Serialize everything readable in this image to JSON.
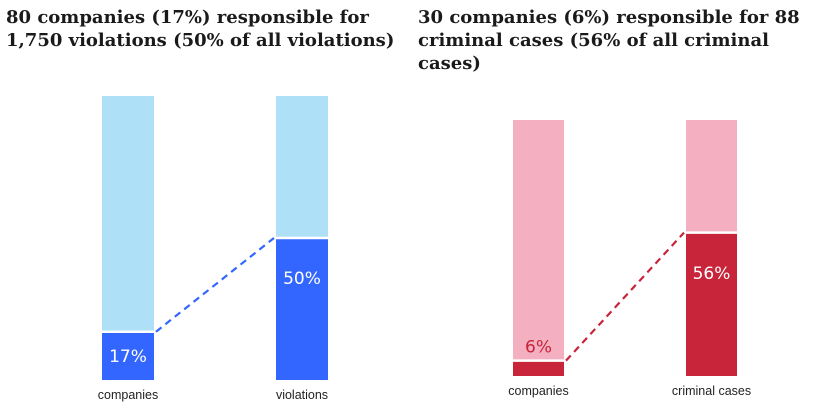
{
  "chart_data": [
    {
      "type": "bar",
      "title": "80 companies (17%) responsible for 1,750 violations (50% of all violations)",
      "categories": [
        "companies",
        "violations"
      ],
      "values": [
        17,
        50
      ],
      "value_labels": [
        "17%",
        "50%"
      ],
      "ylim": [
        0,
        100
      ],
      "stacked_to_100": true,
      "colors": {
        "highlight": "#3366ff",
        "remainder": "#aee0f7",
        "connector": "#3366ff",
        "label_inside": "#ffffff"
      }
    },
    {
      "type": "bar",
      "title": "30 companies (6%) responsible for 88 criminal cases (56% of all criminal cases)",
      "categories": [
        "companies",
        "criminal cases"
      ],
      "values": [
        6,
        56
      ],
      "value_labels": [
        "6%",
        "56%"
      ],
      "ylim": [
        0,
        100
      ],
      "stacked_to_100": true,
      "colors": {
        "highlight": "#c8243a",
        "remainder": "#f4afc0",
        "connector": "#c8243a",
        "label_inside": "#ffffff",
        "label_outside": "#c8243a"
      }
    }
  ]
}
